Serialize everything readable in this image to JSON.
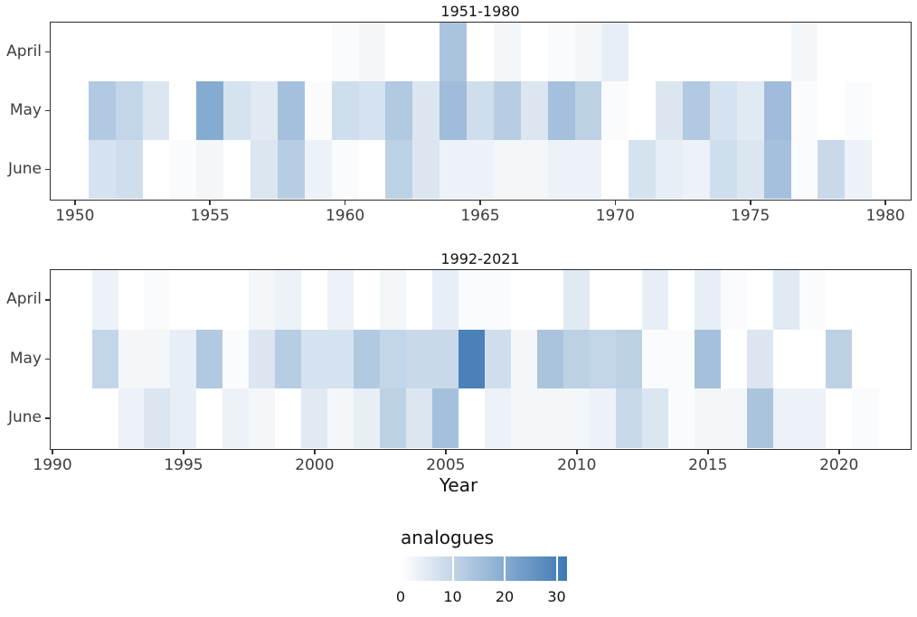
{
  "chart_data": {
    "type": "heatmap",
    "xlabel": "Year",
    "months": [
      "April",
      "May",
      "June"
    ],
    "legend": {
      "title": "analogues",
      "ticks": [
        0,
        10,
        20,
        30
      ],
      "domain": [
        0,
        32
      ],
      "color_low": "#FFFFFF",
      "color_high": "#3E79B4",
      "position": "bottom"
    },
    "panels": [
      {
        "title": "1951-1980",
        "x_ticks": [
          1950,
          1955,
          1960,
          1965,
          1970,
          1975,
          1980
        ],
        "years": [
          1951,
          1952,
          1953,
          1954,
          1955,
          1956,
          1957,
          1958,
          1959,
          1960,
          1961,
          1962,
          1963,
          1964,
          1965,
          1966,
          1967,
          1968,
          1969,
          1970,
          1971,
          1972,
          1973,
          1974,
          1975,
          1976,
          1977,
          1978,
          1979,
          1980
        ],
        "rows": {
          "April": [
            0,
            0,
            0,
            0,
            0,
            0,
            0,
            0,
            0,
            1,
            2,
            0,
            0,
            14,
            0,
            2,
            0,
            1,
            2,
            4,
            0,
            0,
            0,
            0,
            0,
            0,
            2,
            0,
            0,
            0
          ],
          "May": [
            13,
            10,
            6,
            0,
            20,
            7,
            5,
            15,
            1,
            8,
            7,
            13,
            6,
            16,
            8,
            12,
            6,
            15,
            11,
            1,
            0,
            6,
            13,
            7,
            5,
            16,
            1,
            0,
            1,
            0
          ],
          "June": [
            7,
            8,
            0,
            1,
            2,
            0,
            6,
            12,
            3,
            1,
            0,
            11,
            6,
            3,
            3,
            2,
            2,
            3,
            3,
            0,
            7,
            4,
            3,
            8,
            6,
            15,
            1,
            9,
            3,
            0
          ]
        }
      },
      {
        "title": "1992-2021",
        "x_ticks": [
          1990,
          1995,
          2000,
          2005,
          2010,
          2015,
          2020
        ],
        "years": [
          1992,
          1993,
          1994,
          1995,
          1996,
          1997,
          1998,
          1999,
          2000,
          2001,
          2002,
          2003,
          2004,
          2005,
          2006,
          2007,
          2008,
          2009,
          2010,
          2011,
          2012,
          2013,
          2014,
          2015,
          2016,
          2017,
          2018,
          2019,
          2020,
          2021
        ],
        "rows": {
          "April": [
            3,
            0,
            1,
            0,
            0,
            0,
            2,
            3,
            0,
            3,
            0,
            2,
            0,
            4,
            1,
            1,
            0,
            0,
            5,
            0,
            0,
            4,
            0,
            4,
            1,
            0,
            5,
            1,
            0,
            0
          ],
          "May": [
            10,
            2,
            2,
            4,
            13,
            1,
            6,
            12,
            7,
            7,
            13,
            10,
            9,
            9,
            30,
            8,
            2,
            14,
            11,
            10,
            11,
            1,
            1,
            15,
            0,
            6,
            0,
            0,
            11,
            0
          ],
          "June": [
            0,
            3,
            6,
            4,
            0,
            3,
            2,
            0,
            5,
            2,
            4,
            11,
            6,
            15,
            0,
            3,
            2,
            2,
            2,
            3,
            9,
            6,
            1,
            2,
            2,
            14,
            3,
            3,
            0,
            1
          ]
        }
      }
    ]
  }
}
